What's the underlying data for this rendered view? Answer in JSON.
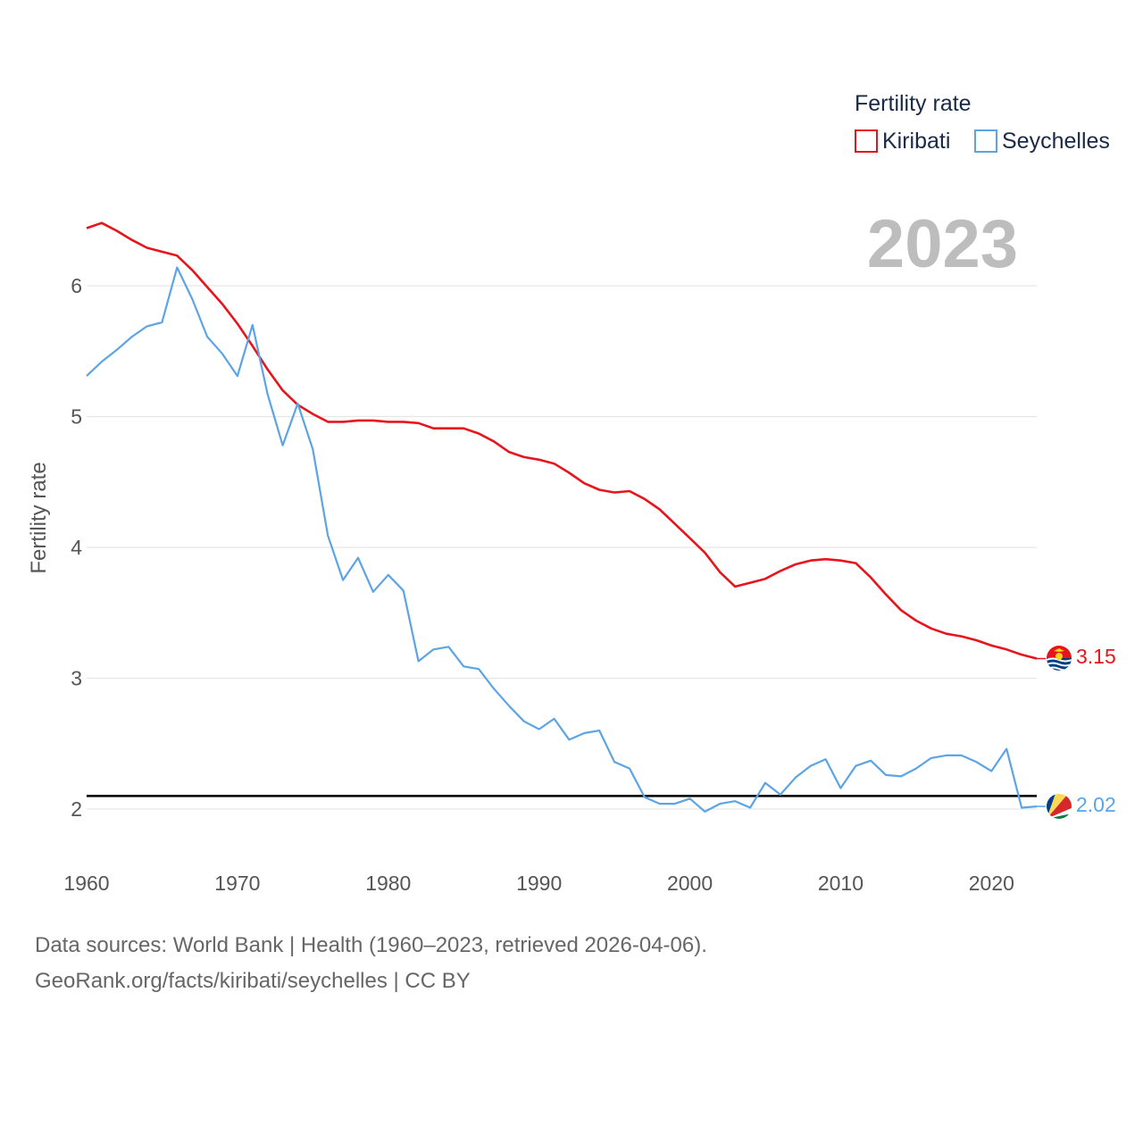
{
  "legend_title": "Fertility rate",
  "year_label": "2023",
  "footer": {
    "line1": "Data sources: World Bank | Health (1960–2023, retrieved 2026-04-06).",
    "line2": "GeoRank.org/facts/kiribati/seychelles | CC BY"
  },
  "chart_data": {
    "type": "line",
    "title": "Fertility rate",
    "xlabel": "",
    "ylabel": "Fertility rate",
    "xlim": [
      1960,
      2023
    ],
    "ylim": [
      1.7,
      6.7
    ],
    "x_ticks": [
      "1960",
      "1970",
      "1980",
      "1990",
      "2000",
      "2010",
      "2020"
    ],
    "y_ticks": [
      "2",
      "3",
      "4",
      "5",
      "6"
    ],
    "reference_line": 2.1,
    "x": [
      1960,
      1961,
      1962,
      1963,
      1964,
      1965,
      1966,
      1967,
      1968,
      1969,
      1970,
      1971,
      1972,
      1973,
      1974,
      1975,
      1976,
      1977,
      1978,
      1979,
      1980,
      1981,
      1982,
      1983,
      1984,
      1985,
      1986,
      1987,
      1988,
      1989,
      1990,
      1991,
      1992,
      1993,
      1994,
      1995,
      1996,
      1997,
      1998,
      1999,
      2000,
      2001,
      2002,
      2003,
      2004,
      2005,
      2006,
      2007,
      2008,
      2009,
      2010,
      2011,
      2012,
      2013,
      2014,
      2015,
      2016,
      2017,
      2018,
      2019,
      2020,
      2021,
      2022,
      2023
    ],
    "series": [
      {
        "name": "Kiribati",
        "color": "#e8141c",
        "end_label": "3.15",
        "flag": "kiribati-flag-icon",
        "values": [
          6.44,
          6.48,
          6.42,
          6.35,
          6.29,
          6.26,
          6.23,
          6.12,
          5.99,
          5.86,
          5.71,
          5.54,
          5.36,
          5.2,
          5.09,
          5.02,
          4.96,
          4.96,
          4.97,
          4.97,
          4.96,
          4.96,
          4.95,
          4.91,
          4.91,
          4.91,
          4.87,
          4.81,
          4.73,
          4.69,
          4.67,
          4.64,
          4.57,
          4.49,
          4.44,
          4.42,
          4.43,
          4.37,
          4.29,
          4.18,
          4.07,
          3.96,
          3.81,
          3.7,
          3.73,
          3.76,
          3.82,
          3.87,
          3.9,
          3.91,
          3.9,
          3.88,
          3.77,
          3.64,
          3.52,
          3.44,
          3.38,
          3.34,
          3.32,
          3.29,
          3.25,
          3.22,
          3.18,
          3.15
        ]
      },
      {
        "name": "Seychelles",
        "color": "#5ba4e5",
        "end_label": "2.02",
        "flag": "seychelles-flag-icon",
        "values": [
          5.31,
          5.42,
          5.51,
          5.61,
          5.69,
          5.72,
          6.14,
          5.9,
          5.61,
          5.48,
          5.31,
          5.7,
          5.17,
          4.78,
          5.1,
          4.75,
          4.09,
          3.75,
          3.92,
          3.66,
          3.79,
          3.67,
          3.13,
          3.22,
          3.24,
          3.09,
          3.07,
          2.92,
          2.79,
          2.67,
          2.61,
          2.69,
          2.53,
          2.58,
          2.6,
          2.36,
          2.31,
          2.09,
          2.04,
          2.04,
          2.08,
          1.98,
          2.04,
          2.06,
          2.01,
          2.2,
          2.11,
          2.24,
          2.33,
          2.38,
          2.16,
          2.33,
          2.37,
          2.26,
          2.25,
          2.31,
          2.39,
          2.41,
          2.41,
          2.36,
          2.29,
          2.46,
          2.01,
          2.02
        ]
      }
    ]
  }
}
